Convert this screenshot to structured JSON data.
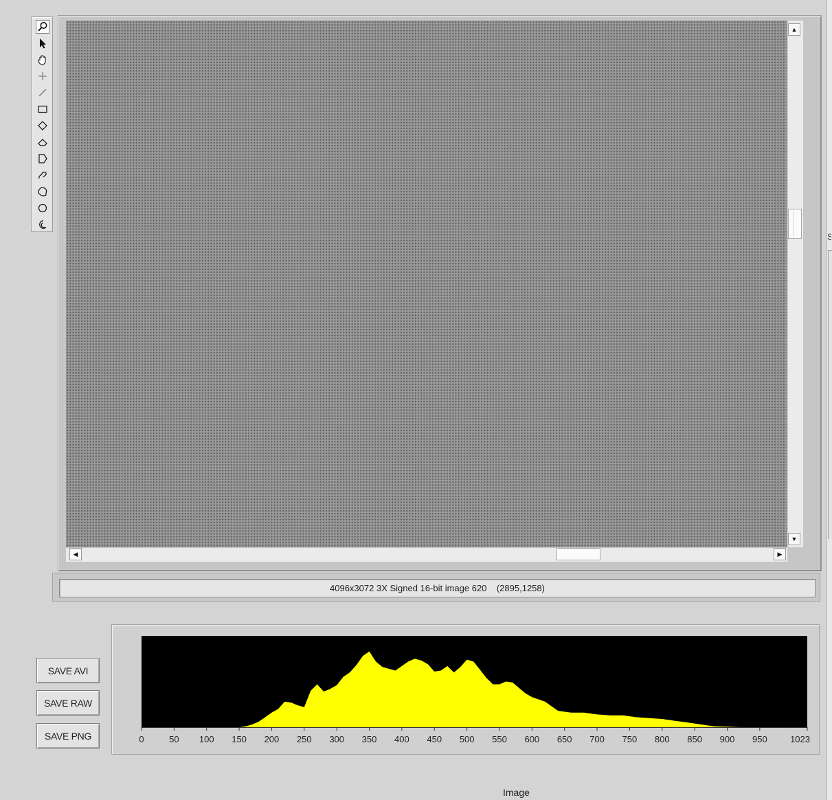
{
  "toolbar": {
    "tools": [
      {
        "name": "zoom-icon",
        "active": true
      },
      {
        "name": "arrow-pointer-icon",
        "active": false
      },
      {
        "name": "pan-hand-icon",
        "active": false
      },
      {
        "name": "crosshair-point-icon",
        "active": false
      },
      {
        "name": "line-tool-icon",
        "active": false
      },
      {
        "name": "rectangle-tool-icon",
        "active": false
      },
      {
        "name": "rotated-rectangle-icon",
        "active": false
      },
      {
        "name": "annulus-sector-icon",
        "active": false
      },
      {
        "name": "polygon-tool-icon",
        "active": false
      },
      {
        "name": "freehand-line-icon",
        "active": false
      },
      {
        "name": "freehand-region-icon",
        "active": false
      },
      {
        "name": "oval-tool-icon",
        "active": false
      },
      {
        "name": "annulus-tool-icon",
        "active": false
      }
    ]
  },
  "image_display": {
    "status_text": "4096x3072 3X Signed 16-bit image 620    (2895,1258)",
    "vertical_scroll_position": 0.38,
    "horizontal_scroll_position": 0.75
  },
  "buttons": {
    "save_avi": "SAVE AVI",
    "save_raw": "SAVE RAW",
    "save_png": "SAVE PNG"
  },
  "right_edge_mark": "S",
  "bottom_caption": "Image",
  "colors": {
    "histogram_fill": "#ffff00",
    "histogram_background": "#000000"
  },
  "chart_data": {
    "type": "area",
    "title": "",
    "xlabel": "",
    "ylabel": "",
    "xlim": [
      0,
      1023
    ],
    "ylim": [
      0,
      1
    ],
    "x_ticks": [
      0,
      50,
      100,
      150,
      200,
      250,
      300,
      350,
      400,
      450,
      500,
      550,
      600,
      650,
      700,
      750,
      800,
      850,
      900,
      950,
      1023
    ],
    "grid": false,
    "x": [
      0,
      150,
      160,
      170,
      180,
      190,
      200,
      210,
      220,
      230,
      240,
      250,
      260,
      270,
      280,
      290,
      300,
      310,
      320,
      330,
      340,
      350,
      360,
      370,
      380,
      390,
      400,
      410,
      420,
      430,
      440,
      450,
      460,
      470,
      480,
      490,
      500,
      510,
      520,
      530,
      540,
      550,
      560,
      570,
      580,
      590,
      600,
      620,
      640,
      660,
      680,
      700,
      720,
      740,
      760,
      780,
      800,
      820,
      840,
      860,
      880,
      900,
      920,
      940,
      950,
      1023
    ],
    "values": [
      0,
      0,
      0.01,
      0.03,
      0.06,
      0.11,
      0.16,
      0.2,
      0.28,
      0.27,
      0.24,
      0.22,
      0.4,
      0.47,
      0.39,
      0.42,
      0.46,
      0.55,
      0.6,
      0.68,
      0.78,
      0.83,
      0.72,
      0.66,
      0.64,
      0.62,
      0.67,
      0.72,
      0.75,
      0.73,
      0.69,
      0.61,
      0.62,
      0.67,
      0.6,
      0.66,
      0.74,
      0.72,
      0.63,
      0.54,
      0.47,
      0.47,
      0.5,
      0.49,
      0.43,
      0.37,
      0.33,
      0.28,
      0.18,
      0.16,
      0.16,
      0.14,
      0.13,
      0.13,
      0.11,
      0.1,
      0.09,
      0.07,
      0.05,
      0.03,
      0.01,
      0.005,
      0,
      0,
      0,
      0
    ]
  }
}
